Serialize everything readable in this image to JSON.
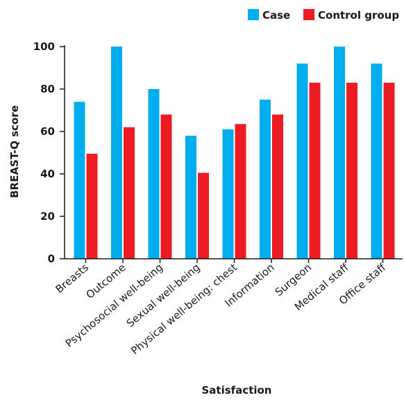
{
  "chart_data": {
    "type": "bar",
    "title": "",
    "xlabel": "Satisfaction",
    "ylabel": "BREAST-Q score",
    "ylim": [
      0,
      100
    ],
    "yticks": [
      0,
      20,
      40,
      60,
      80,
      100
    ],
    "grid": false,
    "legend_position": "top-right",
    "categories": [
      "Breasts",
      "Outcome",
      "Psychosocial well-being",
      "Sexual well-being",
      "Physical well-being: chest",
      "Information",
      "Surgeon",
      "Medical staff",
      "Office staff"
    ],
    "series": [
      {
        "name": "Case",
        "color": "#00AEEF",
        "values": [
          74,
          100,
          80,
          58,
          61,
          75,
          92,
          100,
          92
        ]
      },
      {
        "name": "Control group",
        "color": "#ED1C24",
        "values": [
          49.5,
          62,
          68,
          40.5,
          63.5,
          68,
          83,
          83,
          83
        ]
      }
    ]
  }
}
